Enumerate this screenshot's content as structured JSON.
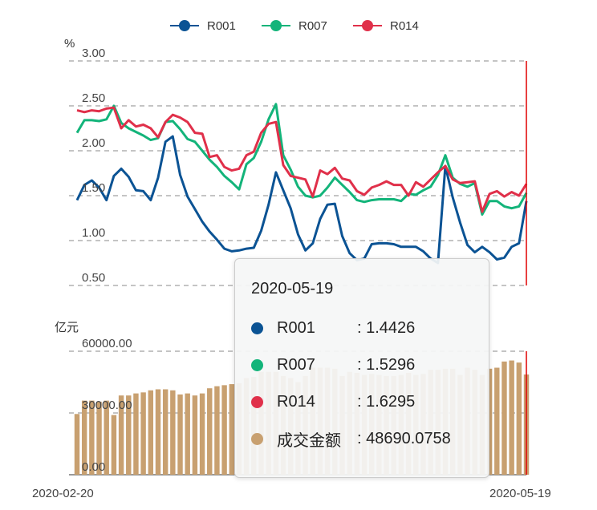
{
  "chart_data": {
    "type": "line+bar",
    "legend": {
      "position": "top-center",
      "items": [
        "R001",
        "R007",
        "R014"
      ]
    },
    "colors": {
      "R001": "#0b5394",
      "R007": "#13b47a",
      "R014": "#e0304a",
      "成交金额": "#c8a070",
      "crosshair": "#e00000"
    },
    "x_start_label": "2020-02-20",
    "x_end_label": "2020-05-19",
    "rate_axis": {
      "unit": "%",
      "ticks": [
        "3.00",
        "2.50",
        "2.00",
        "1.50",
        "1.00",
        "0.50"
      ],
      "range": [
        0.5,
        3.0
      ]
    },
    "volume_axis": {
      "unit": "亿元",
      "ticks": [
        "60000.00",
        "30000.00",
        "0.00"
      ],
      "range": [
        0,
        60000
      ]
    },
    "series": [
      {
        "name": "R001",
        "values": [
          1.45,
          1.62,
          1.67,
          1.59,
          1.45,
          1.72,
          1.8,
          1.71,
          1.56,
          1.55,
          1.45,
          1.7,
          2.1,
          2.16,
          1.73,
          1.49,
          1.35,
          1.21,
          1.1,
          1.01,
          0.91,
          0.88,
          0.89,
          0.91,
          0.92,
          1.11,
          1.4,
          1.76,
          1.56,
          1.36,
          1.07,
          0.89,
          0.97,
          1.24,
          1.4,
          1.41,
          1.05,
          0.86,
          0.78,
          0.8,
          0.96,
          0.97,
          0.97,
          0.96,
          0.93,
          0.93,
          0.93,
          0.88,
          0.8,
          0.75,
          1.83,
          1.48,
          1.2,
          0.95,
          0.87,
          0.93,
          0.87,
          0.79,
          0.81,
          0.93,
          0.97,
          1.44
        ]
      },
      {
        "name": "R007",
        "values": [
          2.2,
          2.34,
          2.34,
          2.33,
          2.35,
          2.5,
          2.31,
          2.25,
          2.21,
          2.17,
          2.12,
          2.14,
          2.32,
          2.33,
          2.24,
          2.13,
          2.1,
          2.0,
          1.9,
          1.82,
          1.72,
          1.65,
          1.57,
          1.85,
          1.92,
          2.1,
          2.35,
          2.52,
          1.95,
          1.79,
          1.6,
          1.5,
          1.48,
          1.5,
          1.59,
          1.7,
          1.62,
          1.54,
          1.45,
          1.43,
          1.45,
          1.46,
          1.46,
          1.46,
          1.44,
          1.52,
          1.51,
          1.56,
          1.6,
          1.73,
          1.95,
          1.7,
          1.63,
          1.6,
          1.64,
          1.29,
          1.44,
          1.44,
          1.38,
          1.36,
          1.38,
          1.53
        ]
      },
      {
        "name": "R014",
        "values": [
          2.45,
          2.43,
          2.45,
          2.44,
          2.47,
          2.48,
          2.25,
          2.34,
          2.27,
          2.29,
          2.25,
          2.15,
          2.32,
          2.4,
          2.37,
          2.32,
          2.2,
          2.19,
          1.93,
          1.95,
          1.82,
          1.78,
          1.8,
          1.95,
          1.99,
          2.2,
          2.3,
          2.32,
          1.84,
          1.72,
          1.7,
          1.68,
          1.49,
          1.78,
          1.74,
          1.81,
          1.69,
          1.67,
          1.55,
          1.51,
          1.59,
          1.62,
          1.66,
          1.62,
          1.62,
          1.5,
          1.65,
          1.6,
          1.68,
          1.76,
          1.83,
          1.68,
          1.64,
          1.65,
          1.66,
          1.32,
          1.52,
          1.55,
          1.49,
          1.54,
          1.5,
          1.63
        ]
      },
      {
        "name": "成交金额",
        "values": [
          29500,
          36000,
          36000,
          35500,
          36000,
          29000,
          38500,
          38500,
          39500,
          40000,
          41000,
          41500,
          41500,
          41000,
          39000,
          39500,
          38500,
          39500,
          42000,
          43000,
          43500,
          44000,
          44500,
          47000,
          47500,
          50000,
          50000,
          50000,
          48000,
          47000,
          45000,
          48000,
          52000,
          52000,
          52000,
          51500,
          48000,
          50000,
          49500,
          48500,
          49000,
          48500,
          48000,
          48000,
          48500,
          49500,
          48500,
          49000,
          51000,
          51000,
          51500,
          51500,
          48500,
          52000,
          51000,
          48500,
          51500,
          52000,
          55000,
          55500,
          54500,
          48690
        ]
      }
    ]
  },
  "tooltip": {
    "date": "2020-05-19",
    "rows": [
      {
        "name": "R001",
        "value": ": 1.4426"
      },
      {
        "name": "R007",
        "value": ": 1.5296"
      },
      {
        "name": "R014",
        "value": ": 1.6295"
      },
      {
        "name": "成交金额",
        "value": ": 48690.0758"
      }
    ]
  }
}
